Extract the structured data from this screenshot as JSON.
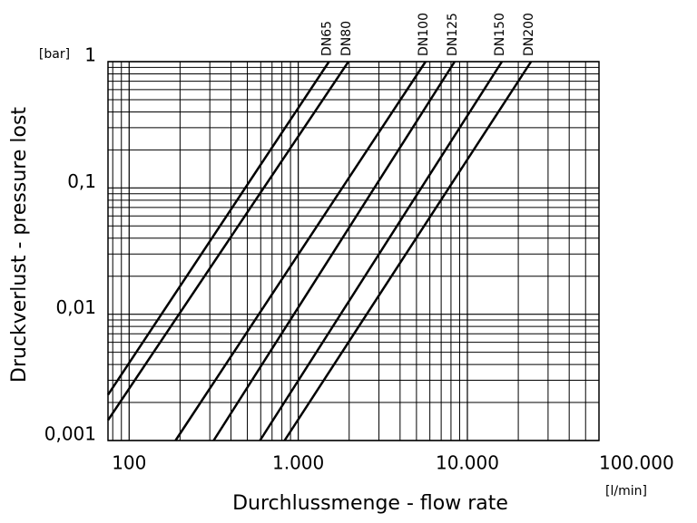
{
  "chart_data": {
    "type": "line",
    "y_label": "Druckverlust - pressure lost",
    "x_label": "Durchlussmenge - flow rate",
    "y_unit": "[bar]",
    "x_unit": "[l/min]",
    "log_x": true,
    "log_y": true,
    "grid": true,
    "minor_grid": true,
    "xlim": [
      75,
      60000
    ],
    "ylim": [
      0.001,
      1
    ],
    "xticks": [
      100,
      {
        "value": 1000,
        "label": "1.000"
      },
      {
        "value": 10000,
        "label": "10.000"
      },
      {
        "value": 100000,
        "label": "100.000"
      }
    ],
    "yticks": [
      {
        "value": 0.001,
        "label": "0,001"
      },
      {
        "value": 0.01,
        "label": "0,01"
      },
      {
        "value": 0.1,
        "label": "0,1"
      },
      1
    ],
    "series": [
      {
        "name": "DN65",
        "color": "#000000",
        "x": [
          75,
          1520
        ],
        "values": [
          0.0023,
          1
        ]
      },
      {
        "name": "DN80",
        "color": "#000000",
        "x": [
          75,
          1980
        ],
        "values": [
          0.00145,
          1
        ]
      },
      {
        "name": "DN100",
        "color": "#000000",
        "x": [
          188,
          5660
        ],
        "values": [
          0.001,
          1
        ]
      },
      {
        "name": "DN125",
        "color": "#000000",
        "x": [
          316,
          8410
        ],
        "values": [
          0.001,
          1
        ]
      },
      {
        "name": "DN150",
        "color": "#000000",
        "x": [
          594,
          16000
        ],
        "values": [
          0.001,
          1
        ]
      },
      {
        "name": "DN200",
        "color": "#000000",
        "x": [
          830,
          23800
        ],
        "values": [
          0.001,
          1
        ]
      }
    ]
  }
}
